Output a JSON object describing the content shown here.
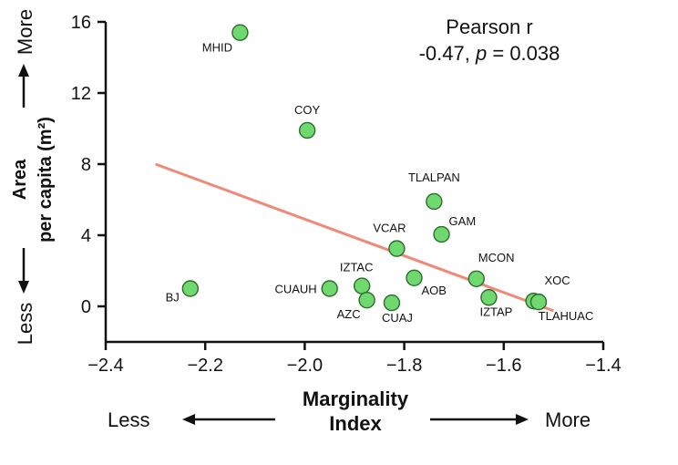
{
  "chart_data": {
    "type": "scatter",
    "title": "",
    "xlabel_line1": "Marginality",
    "xlabel_line2": "Index",
    "ylabel_line1": "Area",
    "ylabel_line2": "per capita (m²)",
    "x_direction": {
      "low": "Less",
      "high": "More"
    },
    "y_direction": {
      "low": "Less",
      "high": "More"
    },
    "xlim": [
      -2.4,
      -1.4
    ],
    "ylim": [
      -2,
      16
    ],
    "xticks": [
      -2.4,
      -2.2,
      -2.0,
      -1.8,
      -1.6,
      -1.4
    ],
    "xtick_labels": [
      "−2.4",
      "−2.2",
      "−2.0",
      "−1.8",
      "−1.6",
      "−1.4"
    ],
    "yticks": [
      0,
      4,
      8,
      12,
      16
    ],
    "ytick_labels": [
      "0",
      "4",
      "8",
      "12",
      "16"
    ],
    "grid": false,
    "points": [
      {
        "label": "MHID",
        "x": -2.13,
        "y": 15.4
      },
      {
        "label": "COY",
        "x": -1.995,
        "y": 9.9
      },
      {
        "label": "TLALPAN",
        "x": -1.74,
        "y": 5.9
      },
      {
        "label": "GAM",
        "x": -1.725,
        "y": 4.05
      },
      {
        "label": "VCAR",
        "x": -1.815,
        "y": 3.25
      },
      {
        "label": "AOB",
        "x": -1.78,
        "y": 1.6
      },
      {
        "label": "MCON",
        "x": -1.655,
        "y": 1.55
      },
      {
        "label": "IZTAC",
        "x": -1.885,
        "y": 1.15
      },
      {
        "label": "CUAUH",
        "x": -1.95,
        "y": 1.0
      },
      {
        "label": "BJ",
        "x": -2.23,
        "y": 1.0
      },
      {
        "label": "AZC",
        "x": -1.875,
        "y": 0.35
      },
      {
        "label": "CUAJ",
        "x": -1.825,
        "y": 0.2
      },
      {
        "label": "IZTAP",
        "x": -1.63,
        "y": 0.5
      },
      {
        "label": "XOC",
        "x": -1.54,
        "y": 0.3
      },
      {
        "label": "TLAHUAC",
        "x": -1.53,
        "y": 0.25
      }
    ],
    "regression_line": {
      "x": [
        -2.3,
        -1.5
      ],
      "y": [
        8.0,
        -0.25
      ]
    },
    "annotation": {
      "line1": "Pearson r",
      "r_value": "-0.47",
      "p_symbol": "p",
      "p_value": " = 0.038"
    },
    "colors": {
      "point_fill": "#6fd86f",
      "point_stroke": "#2e6b2e",
      "line": "#f08a78",
      "axis": "#111111"
    }
  }
}
